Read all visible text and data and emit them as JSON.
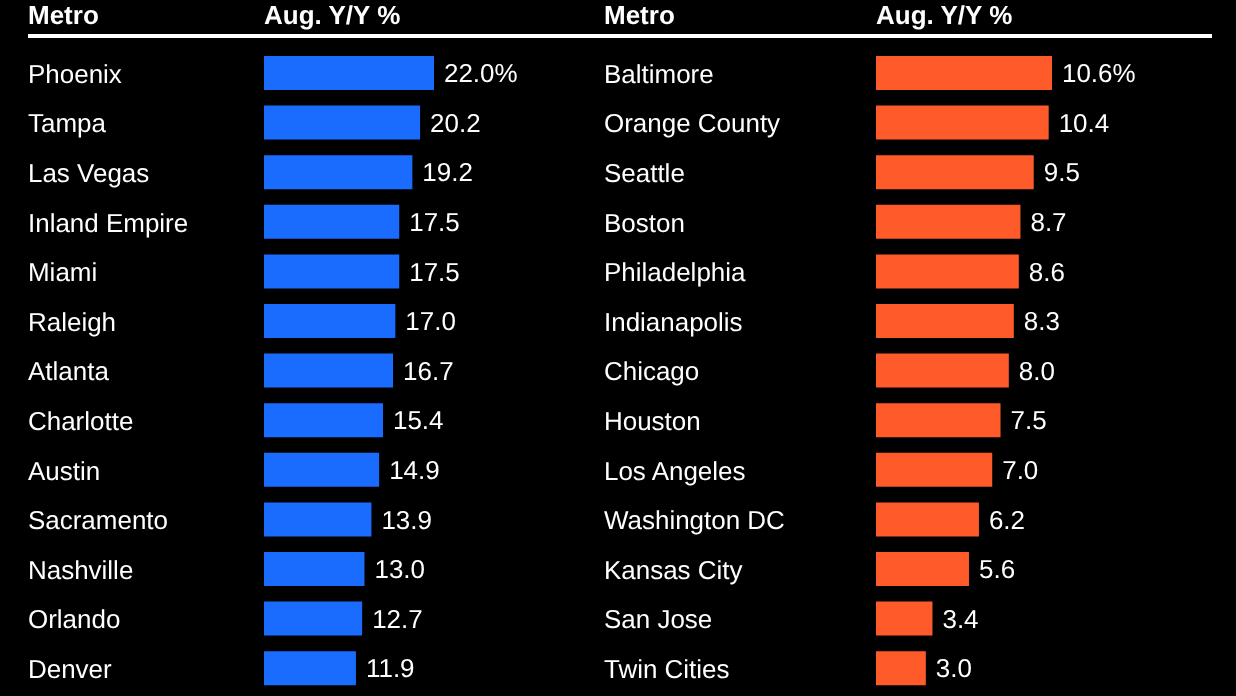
{
  "chart_data": [
    {
      "type": "bar",
      "orientation": "horizontal",
      "ylabel": "Metro",
      "xlabel": "Aug. Y/Y %",
      "color": "#1a6cff",
      "categories": [
        "Phoenix",
        "Tampa",
        "Las Vegas",
        "Inland Empire",
        "Miami",
        "Raleigh",
        "Atlanta",
        "Charlotte",
        "Austin",
        "Sacramento",
        "Nashville",
        "Orlando",
        "Denver"
      ],
      "values": [
        22.0,
        20.2,
        19.2,
        17.5,
        17.5,
        17.0,
        16.7,
        15.4,
        14.9,
        13.9,
        13.0,
        12.7,
        11.9
      ],
      "value_labels": [
        "22.0%",
        "20.2",
        "19.2",
        "17.5",
        "17.5",
        "17.0",
        "16.7",
        "15.4",
        "14.9",
        "13.9",
        "13.0",
        "12.7",
        "11.9"
      ]
    },
    {
      "type": "bar",
      "orientation": "horizontal",
      "ylabel": "Metro",
      "xlabel": "Aug. Y/Y %",
      "color": "#ff5a2a",
      "categories": [
        "Baltimore",
        "Orange County",
        "Seattle",
        "Boston",
        "Philadelphia",
        "Indianapolis",
        "Chicago",
        "Houston",
        "Los Angeles",
        "Washington DC",
        "Kansas City",
        "San Jose",
        "Twin Cities"
      ],
      "values": [
        10.6,
        10.4,
        9.5,
        8.7,
        8.6,
        8.3,
        8.0,
        7.5,
        7.0,
        6.2,
        5.6,
        3.4,
        3.0
      ],
      "value_labels": [
        "10.6%",
        "10.4",
        "9.5",
        "8.7",
        "8.6",
        "8.3",
        "8.0",
        "7.5",
        "7.0",
        "6.2",
        "5.6",
        "3.4",
        "3.0"
      ]
    }
  ]
}
